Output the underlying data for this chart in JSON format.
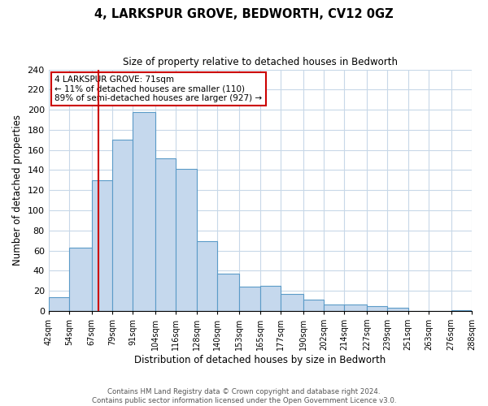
{
  "title": "4, LARKSPUR GROVE, BEDWORTH, CV12 0GZ",
  "subtitle": "Size of property relative to detached houses in Bedworth",
  "xlabel": "Distribution of detached houses by size in Bedworth",
  "ylabel": "Number of detached properties",
  "bar_edges": [
    42,
    54,
    67,
    79,
    91,
    104,
    116,
    128,
    140,
    153,
    165,
    177,
    190,
    202,
    214,
    227,
    239,
    251,
    263,
    276,
    288
  ],
  "bar_heights": [
    14,
    63,
    130,
    170,
    198,
    152,
    141,
    69,
    37,
    24,
    25,
    17,
    11,
    6,
    6,
    5,
    3,
    0,
    0,
    1
  ],
  "tick_labels": [
    "42sqm",
    "54sqm",
    "67sqm",
    "79sqm",
    "91sqm",
    "104sqm",
    "116sqm",
    "128sqm",
    "140sqm",
    "153sqm",
    "165sqm",
    "177sqm",
    "190sqm",
    "202sqm",
    "214sqm",
    "227sqm",
    "239sqm",
    "251sqm",
    "263sqm",
    "276sqm",
    "288sqm"
  ],
  "bar_color": "#c5d8ed",
  "bar_edge_color": "#5b9bc8",
  "vline_x": 71,
  "vline_color": "#cc0000",
  "annotation_line1": "4 LARKSPUR GROVE: 71sqm",
  "annotation_line2": "← 11% of detached houses are smaller (110)",
  "annotation_line3": "89% of semi-detached houses are larger (927) →",
  "annotation_box_color": "#ffffff",
  "annotation_border_color": "#cc0000",
  "ylim": [
    0,
    240
  ],
  "yticks": [
    0,
    20,
    40,
    60,
    80,
    100,
    120,
    140,
    160,
    180,
    200,
    220,
    240
  ],
  "footer_line1": "Contains HM Land Registry data © Crown copyright and database right 2024.",
  "footer_line2": "Contains public sector information licensed under the Open Government Licence v3.0.",
  "background_color": "#ffffff",
  "grid_color": "#c8d8e8"
}
